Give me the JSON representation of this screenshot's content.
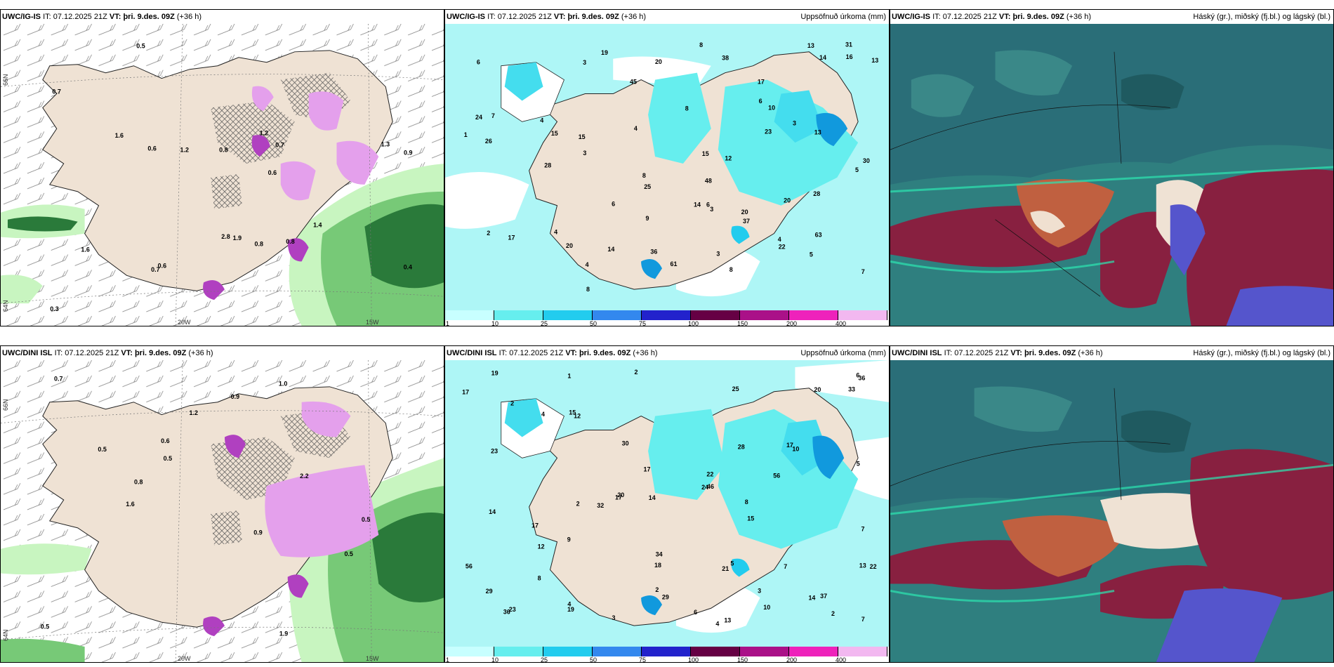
{
  "panels": [
    {
      "model": "UWC/IG-IS",
      "it_label": "IT:",
      "it": "07.12.2025 21Z",
      "vt_label": "VT:",
      "vt": "þri. 9.des. 09Z",
      "lead": "(+36 h)",
      "right": ""
    },
    {
      "model": "UWC/IG-IS",
      "it_label": "IT:",
      "it": "07.12.2025 21Z",
      "vt_label": "VT:",
      "vt": "þri. 9.des. 09Z",
      "lead": "(+36 h)",
      "right": "Uppsöfnuð úrkoma (mm)"
    },
    {
      "model": "UWC/IG-IS",
      "it_label": "IT:",
      "it": "07.12.2025 21Z",
      "vt_label": "VT:",
      "vt": "þri. 9.des. 09Z",
      "lead": "(+36 h)",
      "right": "Háský (gr.), miðský (fj.bl.) og lágský (bl.)"
    },
    {
      "model": "UWC/DINI ISL",
      "it_label": "IT:",
      "it": "07.12.2025 21Z",
      "vt_label": "VT:",
      "vt": "þri. 9.des. 09Z",
      "lead": "(+36 h)",
      "right": ""
    },
    {
      "model": "UWC/DINI ISL",
      "it_label": "IT:",
      "it": "07.12.2025 21Z",
      "vt_label": "VT:",
      "vt": "þri. 9.des. 09Z",
      "lead": "(+36 h)",
      "right": "Uppsöfnuð úrkoma (mm)"
    },
    {
      "model": "UWC/DINI ISL",
      "it_label": "IT:",
      "it": "07.12.2025 21Z",
      "vt_label": "VT:",
      "vt": "þri. 9.des. 09Z",
      "lead": "(+36 h)",
      "right": "Háský (gr.), miðský (fj.bl.) og lágský (bl.)"
    }
  ],
  "axis": {
    "lon_20": "20W",
    "lon_15": "15W",
    "lat_66": "66N",
    "lat_64": "64N"
  },
  "colorbar": {
    "ticks": [
      "1",
      "10",
      "25",
      "50",
      "75",
      "100",
      "150",
      "200",
      "400"
    ],
    "colors": [
      "#c8ffff",
      "#66eeee",
      "#22ccee",
      "#3388ee",
      "#2222cc",
      "#660044",
      "#aa1188",
      "#ee22bb",
      "#f2b8f0"
    ]
  },
  "colors": {
    "land": "#efe2d4",
    "sea_precip": "#aef6f6",
    "precip_med": "#44ddee",
    "precip_high": "#1199dd",
    "snow_light": "#c8f5c0",
    "snow_mid": "#77c977",
    "snow_dark": "#2a7a3a",
    "mag_light": "#e4a0ec",
    "mag_dark": "#b040c0",
    "cloud_base": "#2f7f7f",
    "cloud_high": "#a03050",
    "cloud_mid": "#c06040",
    "cloud_low": "#5555cc"
  },
  "precip_top": [
    "8",
    "3",
    "4",
    "4",
    "3",
    "3",
    "5",
    "3",
    "25",
    "20",
    "17",
    "24",
    "8",
    "6",
    "23",
    "13",
    "26",
    "14",
    "20",
    "13",
    "4",
    "3",
    "4",
    "22",
    "12",
    "10",
    "28",
    "15",
    "61",
    "45",
    "37",
    "31",
    "17",
    "14",
    "19",
    "36",
    "8",
    "7",
    "30",
    "20",
    "20",
    "15",
    "13",
    "63",
    "38",
    "28",
    "14",
    "9",
    "48",
    "16",
    "6",
    "8",
    "15",
    "6",
    "6",
    "7",
    "5",
    "4",
    "8",
    "2",
    "1"
  ],
  "precip_bot": [
    "3",
    "4",
    "4",
    "3",
    "1",
    "2",
    "2",
    "2",
    "2",
    "30",
    "20",
    "29",
    "20",
    "18",
    "25",
    "24",
    "23",
    "19",
    "32",
    "17",
    "21",
    "36",
    "22",
    "36",
    "10",
    "17",
    "56",
    "12",
    "19",
    "15",
    "14",
    "13",
    "34",
    "33",
    "8",
    "8",
    "13",
    "29",
    "28",
    "37",
    "46",
    "56",
    "22",
    "23",
    "12",
    "5",
    "7",
    "6",
    "4",
    "2",
    "6",
    "5",
    "7",
    "7",
    "9",
    "17",
    "17",
    "17",
    "15",
    "14",
    "14",
    "10"
  ],
  "snow_top": [
    "0.3",
    "0.4",
    "0.5",
    "1.6",
    "1.4",
    "0.7",
    "0.6",
    "0.8",
    "1.2",
    "1.9",
    "1.2",
    "0.9",
    "0.6",
    "0.6",
    "0.8",
    "0.7",
    "0.7",
    "0.8",
    "1.3",
    "1.6",
    "2.8"
  ],
  "snow_bot": [
    "0.9",
    "0.9",
    "0.5",
    "0.8",
    "1.0",
    "1.9",
    "1.6",
    "2.2",
    "0.6",
    "0.5",
    "0.5",
    "0.5",
    "0.5",
    "0.7",
    "1.2"
  ]
}
